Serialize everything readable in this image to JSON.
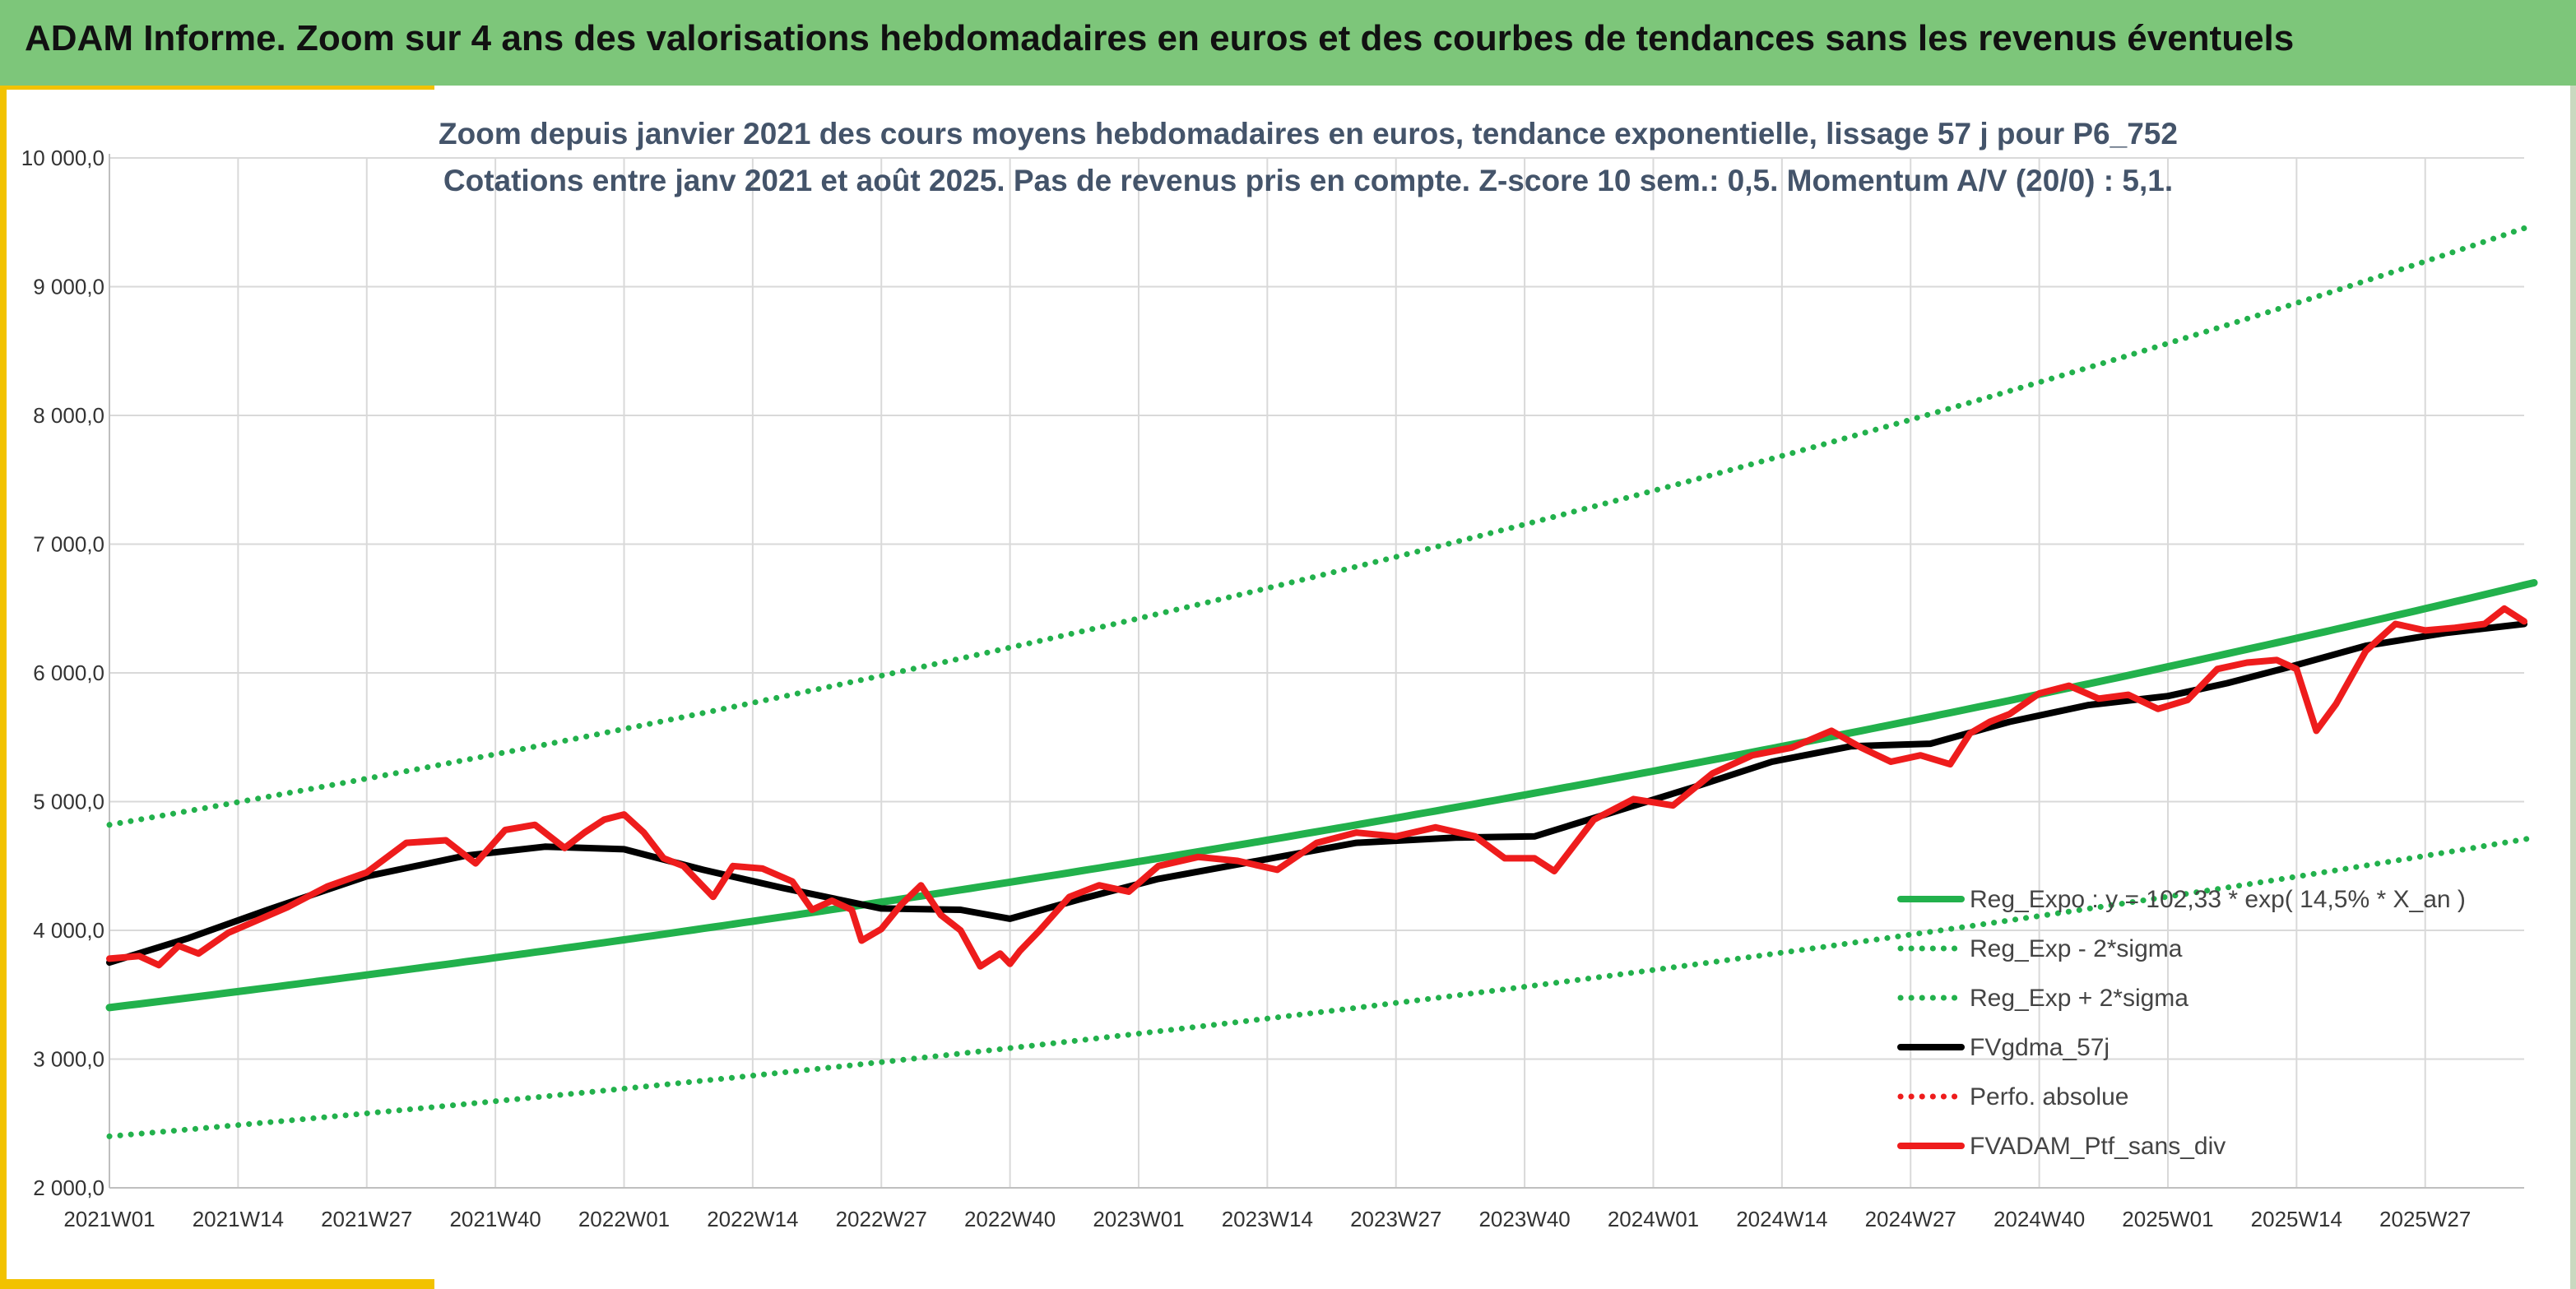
{
  "banner": {
    "title": "ADAM Informe. Zoom sur 4 ans des valorisations hebdomadaires en euros et des courbes de tendances sans les revenus éventuels",
    "color": "#7dc67a"
  },
  "chart_data": {
    "type": "line",
    "title": "Zoom depuis janvier 2021 des cours moyens hebdomadaires en euros, tendance exponentielle, lissage 57 j pour P6_752",
    "subtitle": "Cotations entre janv 2021 et août 2025. Pas de revenus pris en compte. Z-score 10 sem.: 0,5. Momentum A/V (20/0) : 5,1.",
    "xlabel": "",
    "ylabel": "",
    "ylim": [
      2000,
      10000
    ],
    "yticks": [
      "2 000,0",
      "3 000,0",
      "4 000,0",
      "5 000,0",
      "6 000,0",
      "7 000,0",
      "8 000,0",
      "9 000,0",
      "10 000,0"
    ],
    "xticks": [
      "2021W01",
      "2021W14",
      "2021W27",
      "2021W40",
      "2022W01",
      "2022W14",
      "2022W27",
      "2022W40",
      "2023W01",
      "2023W14",
      "2023W27",
      "2023W40",
      "2024W01",
      "2024W14",
      "2024W27",
      "2024W40",
      "2025W01",
      "2025W14",
      "2025W27"
    ],
    "x_tick_index": [
      0,
      13,
      26,
      39,
      52,
      65,
      78,
      91,
      104,
      117,
      130,
      143,
      156,
      169,
      182,
      195,
      208,
      221,
      234
    ],
    "n_weeks": 245,
    "grid": true,
    "legend_position": "right",
    "colors": {
      "green": "#00a651",
      "black": "#000000",
      "red": "#ee1c1c"
    },
    "series": [
      {
        "name": "Reg_Expo : y = 102,33 * exp( 14,5% *  X_an )",
        "color": "#22b14c",
        "style": "solid",
        "x": [
          0,
          245
        ],
        "y": [
          3400,
          6700
        ],
        "curve": "exponential"
      },
      {
        "name": "Reg_Exp - 2*sigma",
        "color": "#22b14c",
        "style": "dotted",
        "x": [
          0,
          245
        ],
        "y": [
          2400,
          4720
        ],
        "curve": "exponential"
      },
      {
        "name": "Reg_Exp + 2*sigma",
        "color": "#22b14c",
        "style": "dotted",
        "x": [
          0,
          245
        ],
        "y": [
          4820,
          9480
        ],
        "curve": "exponential"
      },
      {
        "name": "FVgdma_57j",
        "color": "#000000",
        "style": "solid",
        "x": [
          0,
          8,
          16,
          26,
          36,
          44,
          52,
          60,
          68,
          78,
          86,
          91,
          98,
          106,
          116,
          126,
          136,
          144,
          152,
          160,
          168,
          176,
          184,
          192,
          200,
          208,
          214,
          220,
          228,
          236,
          244
        ],
        "y": [
          3750,
          3940,
          4160,
          4420,
          4580,
          4650,
          4630,
          4470,
          4330,
          4170,
          4160,
          4090,
          4240,
          4400,
          4540,
          4680,
          4720,
          4730,
          4920,
          5110,
          5310,
          5430,
          5450,
          5620,
          5750,
          5820,
          5920,
          6040,
          6210,
          6310,
          6380
        ]
      },
      {
        "name": "Perfo. absolue",
        "color": "#ee1c1c",
        "style": "dotted",
        "x": [],
        "y": []
      },
      {
        "name": "FVADAM_Ptf_sans_div",
        "color": "#ee1c1c",
        "style": "solid",
        "x": [
          0,
          3,
          5,
          7,
          9,
          12,
          15,
          18,
          22,
          26,
          30,
          34,
          37,
          40,
          43,
          46,
          48,
          50,
          52,
          54,
          56,
          58,
          61,
          63,
          66,
          69,
          71,
          73,
          75,
          76,
          78,
          80,
          82,
          84,
          86,
          88,
          90,
          91,
          92,
          94,
          97,
          100,
          103,
          106,
          110,
          114,
          118,
          122,
          126,
          130,
          134,
          138,
          141,
          144,
          146,
          150,
          154,
          158,
          162,
          166,
          170,
          174,
          177,
          180,
          183,
          186,
          188,
          190,
          192,
          195,
          198,
          201,
          204,
          207,
          210,
          213,
          216,
          219,
          221,
          223,
          225,
          228,
          231,
          234,
          237,
          240,
          242,
          244
        ],
        "y": [
          3780,
          3800,
          3730,
          3880,
          3820,
          3980,
          4080,
          4180,
          4340,
          4450,
          4680,
          4700,
          4520,
          4780,
          4820,
          4640,
          4760,
          4860,
          4900,
          4760,
          4560,
          4500,
          4260,
          4500,
          4480,
          4380,
          4160,
          4230,
          4160,
          3920,
          4010,
          4200,
          4350,
          4120,
          4000,
          3720,
          3820,
          3740,
          3840,
          4000,
          4260,
          4350,
          4300,
          4500,
          4570,
          4540,
          4470,
          4680,
          4760,
          4730,
          4800,
          4730,
          4560,
          4560,
          4460,
          4860,
          5020,
          4970,
          5220,
          5360,
          5420,
          5550,
          5420,
          5310,
          5360,
          5290,
          5530,
          5620,
          5680,
          5840,
          5900,
          5800,
          5830,
          5720,
          5790,
          6030,
          6080,
          6100,
          6030,
          5550,
          5760,
          6170,
          6380,
          6330,
          6350,
          6380,
          6500,
          6400
        ]
      }
    ]
  }
}
